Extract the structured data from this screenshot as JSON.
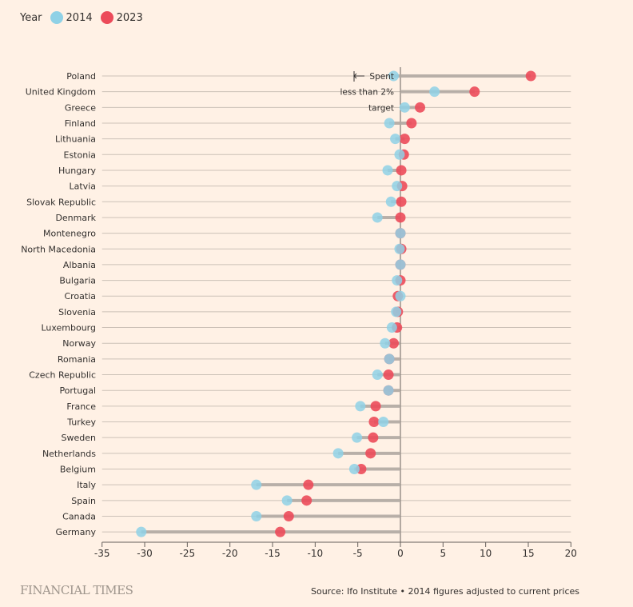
{
  "chart_data": {
    "type": "dumbbell",
    "title": "",
    "xlabel": "",
    "ylabel": "",
    "xlim": [
      -35,
      20
    ],
    "xticks": [
      -35,
      -30,
      -25,
      -20,
      -15,
      -10,
      -5,
      0,
      5,
      10,
      15,
      20
    ],
    "legend": {
      "title": "Year",
      "placement": "top-left",
      "entries": [
        {
          "label": "2014",
          "color": "#8fd1e6"
        },
        {
          "label": "2023",
          "color": "#ec4b5a"
        }
      ]
    },
    "annotation": {
      "lines": [
        "Spent",
        "less than 2%",
        "target"
      ],
      "arrow": "left"
    },
    "series": [
      {
        "name": "2014",
        "color": "#8fd1e6"
      },
      {
        "name": "2023",
        "color": "#ec4b5a"
      }
    ],
    "categories": [
      "Poland",
      "United Kingdom",
      "Greece",
      "Finland",
      "Lithuania",
      "Estonia",
      "Hungary",
      "Latvia",
      "Slovak Republic",
      "Denmark",
      "Montenegro",
      "North Macedonia",
      "Albania",
      "Bulgaria",
      "Croatia",
      "Slovenia",
      "Luxembourg",
      "Norway",
      "Romania",
      "Czech Republic",
      "Portugal",
      "France",
      "Turkey",
      "Sweden",
      "Netherlands",
      "Belgium",
      "Italy",
      "Spain",
      "Canada",
      "Germany"
    ],
    "values_2014": [
      -0.8,
      4.0,
      0.5,
      -1.3,
      -0.6,
      -0.1,
      -1.5,
      -0.4,
      -1.1,
      -2.7,
      0.0,
      -0.1,
      0.0,
      -0.4,
      0.0,
      -0.5,
      -1.0,
      -1.8,
      -1.3,
      -2.7,
      -1.4,
      -4.7,
      -2.0,
      -5.1,
      -7.3,
      -5.4,
      -16.9,
      -13.3,
      -16.9,
      -30.4
    ],
    "values_2023": [
      15.3,
      8.7,
      2.3,
      1.3,
      0.5,
      0.4,
      0.1,
      0.2,
      0.1,
      0.0,
      0.0,
      0.1,
      0.0,
      0.0,
      -0.3,
      -0.3,
      -0.4,
      -0.8,
      -1.3,
      -1.4,
      -1.4,
      -2.9,
      -3.1,
      -3.2,
      -3.5,
      -4.6,
      -10.8,
      -11.0,
      -13.1,
      -14.1
    ]
  },
  "footer": {
    "brand": "FINANCIAL TIMES",
    "source": "Source: Ifo Institute • 2014 figures adjusted to current prices"
  }
}
